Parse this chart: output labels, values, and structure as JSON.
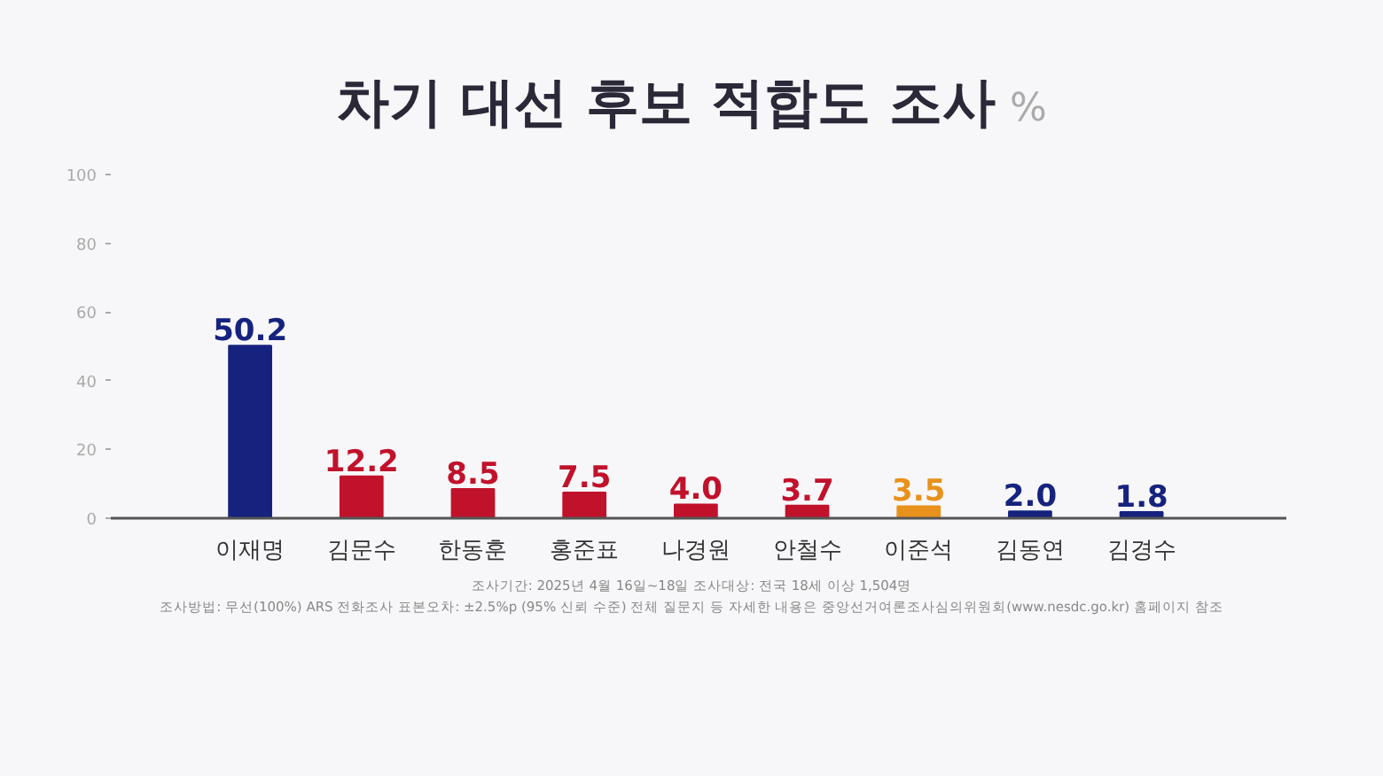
{
  "chart_data": {
    "type": "bar",
    "title": "차기 대선 후보 적합도 조사",
    "subtitle": "%",
    "categories": [
      "이재명",
      "김문수",
      "한동훈",
      "홍준표",
      "나경원",
      "안철수",
      "이준석",
      "김동연",
      "김경수"
    ],
    "values": [
      50.2,
      12.2,
      8.5,
      7.5,
      4.0,
      3.7,
      3.5,
      2.0,
      1.8
    ],
    "colors": [
      "#16237e",
      "#c1122b",
      "#c1122b",
      "#c1122b",
      "#c1122b",
      "#c1122b",
      "#e8911c",
      "#16237e",
      "#16237e"
    ],
    "value_labels": [
      "50.2",
      "12.2",
      "8.5",
      "7.5",
      "4.0",
      "3.7",
      "3.5",
      "2.0",
      "1.8"
    ],
    "ylim": [
      0,
      100
    ],
    "yticks": [
      0,
      20,
      40,
      60,
      80,
      100
    ],
    "grid": false,
    "annotations": [
      "조사기간: 2025년 4월 16일~18일    조사대상: 전국 18세 이상 1,504명",
      "조사방법: 무선(100%) ARS 전화조사    표본오차: ±2.5%p (95% 신뢰 수준)    전체 질문지 등 자세한 내용은 중앙선거여론조사심의위원회(www.nesdc.go.kr) 홈페이지 참조"
    ]
  }
}
